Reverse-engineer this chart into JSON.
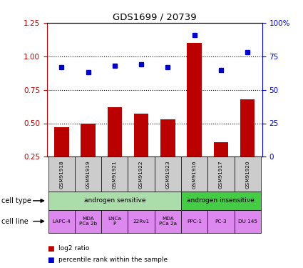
{
  "title": "GDS1699 / 20739",
  "samples": [
    "GSM91918",
    "GSM91919",
    "GSM91921",
    "GSM91922",
    "GSM91923",
    "GSM91916",
    "GSM91917",
    "GSM91920"
  ],
  "log2_ratio": [
    0.47,
    0.5,
    0.62,
    0.57,
    0.53,
    1.1,
    0.36,
    0.68
  ],
  "percentile_rank": [
    67,
    63,
    68,
    69,
    67,
    91,
    65,
    78
  ],
  "bar_color": "#bb0000",
  "dot_color": "#0000cc",
  "ylim_left": [
    0.25,
    1.25
  ],
  "ylim_right": [
    0,
    100
  ],
  "yticks_left": [
    0.25,
    0.5,
    0.75,
    1.0,
    1.25
  ],
  "yticks_right": [
    0,
    25,
    50,
    75,
    100
  ],
  "dotted_lines": [
    0.5,
    0.75,
    1.0
  ],
  "cell_type_groups": [
    {
      "label": "androgen sensitive",
      "start": 0,
      "end": 5,
      "color": "#aaddaa"
    },
    {
      "label": "androgen insensitive",
      "start": 5,
      "end": 8,
      "color": "#44cc44"
    }
  ],
  "cell_lines": [
    {
      "label": "LAPC-4",
      "start": 0,
      "end": 1
    },
    {
      "label": "MDA\nPCa 2b",
      "start": 1,
      "end": 2
    },
    {
      "label": "LNCa\nP",
      "start": 2,
      "end": 3
    },
    {
      "label": "22Rv1",
      "start": 3,
      "end": 4
    },
    {
      "label": "MDA\nPCa 2a",
      "start": 4,
      "end": 5
    },
    {
      "label": "PPC-1",
      "start": 5,
      "end": 6
    },
    {
      "label": "PC-3",
      "start": 6,
      "end": 7
    },
    {
      "label": "DU 145",
      "start": 7,
      "end": 8
    }
  ],
  "cell_line_color": "#dd88ee",
  "label_cell_type": "cell type",
  "label_cell_line": "cell line",
  "legend_log2": "log2 ratio",
  "legend_pct": "percentile rank within the sample",
  "sample_bg_color": "#cccccc"
}
